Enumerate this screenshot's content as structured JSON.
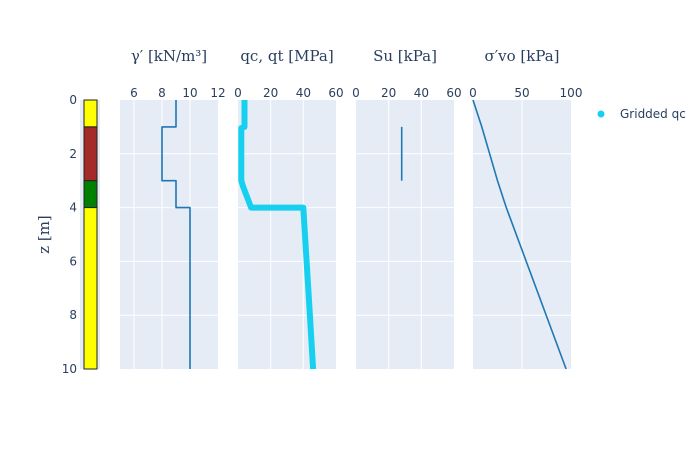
{
  "chart_data": {
    "type": "line",
    "shared_y": {
      "label": "z [m]",
      "range": [
        0,
        10
      ],
      "reversed": true,
      "ticks": [
        "0",
        "2",
        "4",
        "6",
        "8",
        "10"
      ]
    },
    "soil_column": {
      "layers": [
        {
          "top": 0,
          "bottom": 1,
          "color": "#ffff00"
        },
        {
          "top": 1,
          "bottom": 3,
          "color": "#a52a2a"
        },
        {
          "top": 3,
          "bottom": 4,
          "color": "#008000"
        },
        {
          "top": 4,
          "bottom": 10,
          "color": "#ffff00"
        }
      ]
    },
    "panels": [
      {
        "id": "gamma",
        "title": "γ′ [kN/m³]",
        "xlim": [
          5,
          12
        ],
        "xticks": [
          "6",
          "8",
          "10",
          "12"
        ],
        "series": [
          {
            "color": "#1f77b4",
            "width": 1.6,
            "points": [
              [
                9,
                0
              ],
              [
                9,
                1
              ],
              [
                8,
                1
              ],
              [
                8,
                3
              ],
              [
                9,
                3
              ],
              [
                9,
                4
              ],
              [
                10,
                4
              ],
              [
                10,
                10
              ]
            ]
          }
        ]
      },
      {
        "id": "qc",
        "title": "qc, qt [MPa]",
        "xlim": [
          0,
          60
        ],
        "xticks": [
          "0",
          "20",
          "40",
          "60"
        ],
        "series": [
          {
            "color": "#17d0ef",
            "width": 6,
            "points": [
              [
                4,
                0
              ],
              [
                4,
                1
              ],
              [
                2,
                1.05
              ],
              [
                2,
                3
              ],
              [
                3,
                3.2
              ],
              [
                8,
                4
              ],
              [
                40,
                4
              ],
              [
                42,
                6
              ],
              [
                44,
                8
              ],
              [
                46,
                10
              ]
            ]
          }
        ]
      },
      {
        "id": "su",
        "title": "Su [kPa]",
        "xlim": [
          0,
          60
        ],
        "xticks": [
          "0",
          "20",
          "40",
          "60"
        ],
        "series": [
          {
            "color": "#1f77b4",
            "width": 1.6,
            "points": [
              [
                28,
                1
              ],
              [
                28,
                3
              ]
            ]
          }
        ]
      },
      {
        "id": "sigma",
        "title": "σ′vo [kPa]",
        "xlim": [
          0,
          100
        ],
        "xticks": [
          "0",
          "50",
          "100"
        ],
        "series": [
          {
            "color": "#1f77b4",
            "width": 1.6,
            "points": [
              [
                0,
                0
              ],
              [
                9,
                1
              ],
              [
                25,
                3
              ],
              [
                34,
                4
              ],
              [
                95,
                10
              ]
            ]
          }
        ]
      }
    ],
    "legend": {
      "placement": "top-right",
      "entries": [
        {
          "name": "Gridded qc",
          "color": "#17d0ef"
        }
      ]
    }
  }
}
